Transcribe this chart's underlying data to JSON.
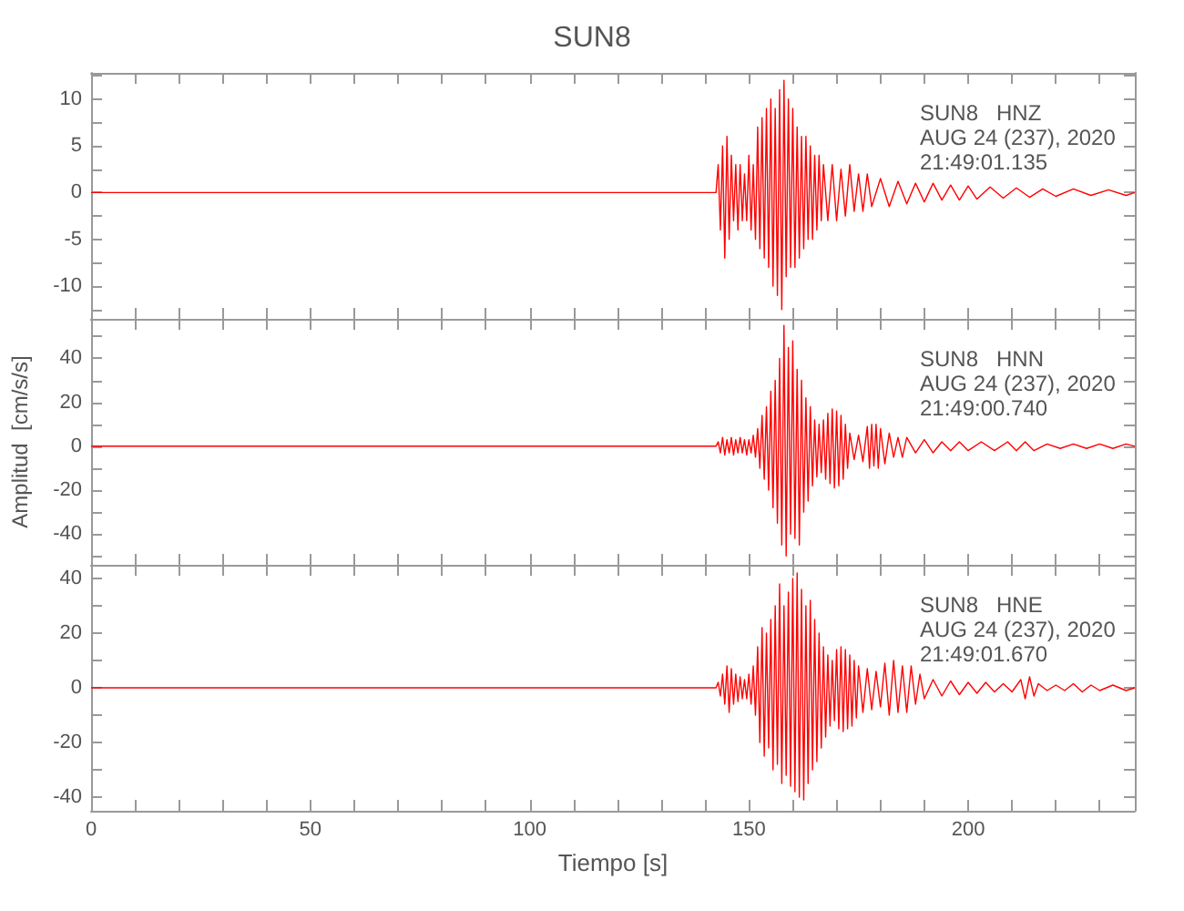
{
  "chart_data": [
    {
      "type": "line",
      "title": "SUN8",
      "annotations": [
        "SUN8   HNZ",
        "AUG 24 (237), 2020",
        "21:49:01.135"
      ],
      "tick_labels": "y",
      "grid": false,
      "line_style": "solid",
      "xlim": [
        0,
        238
      ],
      "xticks": [
        0,
        {
          "value": 10,
          "label": null
        },
        {
          "value": 20,
          "label": null
        },
        {
          "value": 30,
          "label": null
        },
        {
          "value": 40,
          "label": null
        },
        {
          "value": 50,
          "label": null
        },
        {
          "value": 60,
          "label": null
        },
        {
          "value": 70,
          "label": null
        },
        {
          "value": 80,
          "label": null
        },
        {
          "value": 90,
          "label": null
        },
        {
          "value": 100,
          "label": null
        },
        {
          "value": 110,
          "label": null
        },
        {
          "value": 120,
          "label": null
        },
        {
          "value": 130,
          "label": null
        },
        {
          "value": 140,
          "label": null
        },
        {
          "value": 150,
          "label": null
        },
        {
          "value": 160,
          "label": null
        },
        {
          "value": 170,
          "label": null
        },
        {
          "value": 180,
          "label": null
        },
        {
          "value": 190,
          "label": null
        },
        {
          "value": 200,
          "label": null
        },
        {
          "value": 210,
          "label": null
        },
        {
          "value": 220,
          "label": null
        },
        {
          "value": 230,
          "label": null
        }
      ],
      "ylim": [
        -13.5,
        12.8
      ],
      "yticks": [
        {
          "value": -12.5,
          "label": null
        },
        -10,
        {
          "value": -7.5,
          "label": null
        },
        -5,
        {
          "value": -2.5,
          "label": null
        },
        0,
        {
          "value": 2.5,
          "label": null
        },
        5,
        {
          "value": 7.5,
          "label": null
        },
        10,
        {
          "value": 12.5,
          "label": null
        }
      ],
      "series": [
        {
          "color": "#ff0000",
          "x": [
            0,
            142.5,
            143,
            143.5,
            144,
            144.5,
            145,
            145.5,
            146,
            146.5,
            147,
            147.5,
            148,
            148.5,
            149,
            149.5,
            150,
            150.5,
            151,
            151.5,
            152,
            152.5,
            153,
            153.5,
            154,
            154.5,
            155,
            155.5,
            156,
            156.5,
            157,
            157.5,
            158,
            158.5,
            159,
            159.5,
            160,
            160.5,
            161,
            161.5,
            162,
            162.5,
            163,
            163.5,
            164,
            164.5,
            165,
            165.5,
            166,
            166.5,
            167,
            168,
            169,
            170,
            171,
            172,
            173,
            174,
            175,
            176,
            177,
            178,
            180,
            182,
            184,
            186,
            188,
            190,
            192,
            194,
            196,
            198,
            200,
            202,
            205,
            208,
            211,
            214,
            217,
            220,
            224,
            228,
            232,
            236,
            238
          ],
          "values": [
            0,
            0,
            3,
            -4,
            5,
            -7,
            6,
            -5,
            4,
            -3,
            3,
            -4,
            3,
            -3,
            2,
            -3,
            4,
            -4,
            3,
            -5,
            7,
            -6,
            8,
            -7,
            9,
            -8,
            10,
            -10,
            9,
            -11,
            11,
            -12.5,
            12,
            -9,
            10,
            -8,
            9,
            -8,
            7,
            -7,
            6,
            -6,
            6,
            -5,
            5,
            -5,
            4,
            -4,
            4,
            -3,
            3,
            -3,
            3,
            -3,
            2.5,
            -2.5,
            3,
            -2,
            2,
            -2,
            2,
            -1.5,
            1.5,
            -1.5,
            1.2,
            -1.2,
            1,
            -1,
            1,
            -0.8,
            0.8,
            -0.8,
            0.7,
            -0.7,
            0.6,
            -0.6,
            0.5,
            -0.5,
            0.4,
            -0.4,
            0.4,
            -0.3,
            0.3,
            -0.3,
            0
          ]
        }
      ]
    },
    {
      "type": "line",
      "ylabel": "Amplitud  [cm/s/s]",
      "annotations": [
        "SUN8   HNN",
        "AUG 24 (237), 2020",
        "21:49:00.740"
      ],
      "tick_labels": "y",
      "grid": false,
      "line_style": "solid",
      "xlim": [
        0,
        238
      ],
      "xticks": [
        0,
        {
          "value": 10,
          "label": null
        },
        {
          "value": 20,
          "label": null
        },
        {
          "value": 30,
          "label": null
        },
        {
          "value": 40,
          "label": null
        },
        {
          "value": 50,
          "label": null
        },
        {
          "value": 60,
          "label": null
        },
        {
          "value": 70,
          "label": null
        },
        {
          "value": 80,
          "label": null
        },
        {
          "value": 90,
          "label": null
        },
        {
          "value": 100,
          "label": null
        },
        {
          "value": 110,
          "label": null
        },
        {
          "value": 120,
          "label": null
        },
        {
          "value": 130,
          "label": null
        },
        {
          "value": 140,
          "label": null
        },
        {
          "value": 150,
          "label": null
        },
        {
          "value": 160,
          "label": null
        },
        {
          "value": 170,
          "label": null
        },
        {
          "value": 180,
          "label": null
        },
        {
          "value": 190,
          "label": null
        },
        {
          "value": 200,
          "label": null
        },
        {
          "value": 210,
          "label": null
        },
        {
          "value": 220,
          "label": null
        },
        {
          "value": 230,
          "label": null
        }
      ],
      "ylim": [
        -54,
        58
      ],
      "yticks": [
        {
          "value": -50,
          "label": null
        },
        -40,
        {
          "value": -30,
          "label": null
        },
        -20,
        {
          "value": -10,
          "label": null
        },
        0,
        {
          "value": 10,
          "label": null
        },
        20,
        {
          "value": 30,
          "label": null
        },
        40,
        {
          "value": 50,
          "label": null
        }
      ],
      "series": [
        {
          "color": "#ff0000",
          "x": [
            0,
            142.5,
            143,
            143.5,
            144,
            144.5,
            145,
            145.5,
            146,
            146.5,
            147,
            147.5,
            148,
            148.5,
            149,
            149.5,
            150,
            150.5,
            151,
            151.5,
            152,
            152.5,
            153,
            153.5,
            154,
            154.5,
            155,
            155.5,
            156,
            156.5,
            157,
            157.5,
            158,
            158.5,
            159,
            159.5,
            160,
            160.5,
            161,
            161.5,
            162,
            162.5,
            163,
            163.5,
            164,
            164.5,
            165,
            165.5,
            166,
            166.5,
            167,
            167.5,
            168,
            168.5,
            169,
            169.5,
            170,
            170.5,
            171,
            171.5,
            172,
            172.5,
            173,
            174,
            175,
            176,
            177,
            177.5,
            178,
            178.5,
            179,
            179.5,
            180,
            181,
            182,
            183,
            184,
            185,
            186,
            188,
            190,
            192,
            194,
            196,
            198,
            200,
            203,
            206,
            209,
            211,
            213,
            215,
            218,
            221,
            224,
            227,
            230,
            233,
            236,
            238
          ],
          "values": [
            0,
            0,
            2,
            -3,
            4,
            -4,
            3,
            -3,
            4,
            -4,
            3,
            -3,
            4,
            -3,
            3,
            -4,
            3,
            -3,
            5,
            -5,
            8,
            -10,
            14,
            -15,
            18,
            -20,
            25,
            -28,
            30,
            -35,
            40,
            -45,
            55,
            -50,
            45,
            -40,
            48,
            -42,
            35,
            -45,
            30,
            -30,
            22,
            -25,
            18,
            -18,
            12,
            -14,
            10,
            -12,
            12,
            -15,
            15,
            -17,
            17,
            -19,
            16,
            -18,
            14,
            -15,
            10,
            -10,
            6,
            -6,
            5,
            -7,
            9,
            -10,
            10,
            -9,
            10,
            -10,
            8,
            -8,
            6,
            -5,
            4,
            -5,
            4,
            -3,
            3,
            -3,
            2,
            -2,
            2,
            -2,
            2,
            -2,
            2,
            -2,
            2,
            -2,
            1,
            -1,
            1,
            -1,
            1,
            -1,
            1,
            0
          ]
        }
      ]
    },
    {
      "type": "line",
      "xlabel": "Tiempo [s]",
      "annotations": [
        "SUN8   HNE",
        "AUG 24 (237), 2020",
        "21:49:01.670"
      ],
      "grid": false,
      "line_style": "solid",
      "xlim": [
        0,
        238
      ],
      "xticks": [
        0,
        {
          "value": 10,
          "label": null
        },
        {
          "value": 20,
          "label": null
        },
        {
          "value": 30,
          "label": null
        },
        {
          "value": 40,
          "label": null
        },
        50,
        {
          "value": 60,
          "label": null
        },
        {
          "value": 70,
          "label": null
        },
        {
          "value": 80,
          "label": null
        },
        {
          "value": 90,
          "label": null
        },
        100,
        {
          "value": 110,
          "label": null
        },
        {
          "value": 120,
          "label": null
        },
        {
          "value": 130,
          "label": null
        },
        {
          "value": 140,
          "label": null
        },
        150,
        {
          "value": 160,
          "label": null
        },
        {
          "value": 170,
          "label": null
        },
        {
          "value": 180,
          "label": null
        },
        {
          "value": 190,
          "label": null
        },
        200,
        {
          "value": 210,
          "label": null
        },
        {
          "value": 220,
          "label": null
        },
        {
          "value": 230,
          "label": null
        }
      ],
      "ylim": [
        -45,
        45
      ],
      "yticks": [
        -40,
        {
          "value": -30,
          "label": null
        },
        -20,
        {
          "value": -10,
          "label": null
        },
        0,
        {
          "value": 10,
          "label": null
        },
        20,
        {
          "value": 30,
          "label": null
        },
        40
      ],
      "series": [
        {
          "color": "#ff0000",
          "x": [
            0,
            142.5,
            143,
            143.5,
            144,
            144.5,
            145,
            145.5,
            146,
            146.5,
            147,
            147.5,
            148,
            148.5,
            149,
            149.5,
            150,
            150.5,
            151,
            151.5,
            152,
            152.5,
            153,
            153.5,
            154,
            154.5,
            155,
            155.5,
            156,
            156.5,
            157,
            157.5,
            158,
            158.5,
            159,
            159.5,
            160,
            160.5,
            161,
            161.5,
            162,
            162.5,
            163,
            163.5,
            164,
            164.5,
            165,
            165.5,
            166,
            166.5,
            167,
            167.5,
            168,
            168.5,
            169,
            169.5,
            170,
            170.5,
            171,
            171.5,
            172,
            172.5,
            173,
            173.5,
            174,
            174.5,
            175,
            176,
            177,
            178,
            179,
            180,
            181,
            182,
            183,
            184,
            185,
            186,
            187,
            188,
            189,
            190,
            192,
            194,
            196,
            198,
            200,
            202,
            204,
            206,
            208,
            210,
            212,
            213,
            214,
            215,
            216,
            218,
            220,
            222,
            224,
            226,
            228,
            230,
            233,
            236,
            238
          ],
          "values": [
            0,
            0,
            2,
            -3,
            5,
            -6,
            8,
            -9,
            7,
            -6,
            5,
            -5,
            4,
            -4,
            3,
            -4,
            5,
            -6,
            8,
            -10,
            15,
            -20,
            22,
            -25,
            20,
            -22,
            25,
            -30,
            30,
            -28,
            38,
            -35,
            30,
            -32,
            35,
            -36,
            40,
            -38,
            42,
            -40,
            36,
            -41,
            30,
            -35,
            32,
            -30,
            25,
            -27,
            20,
            -22,
            15,
            -18,
            12,
            -14,
            10,
            -12,
            14,
            -15,
            15,
            -16,
            14,
            -15,
            12,
            -14,
            10,
            -11,
            8,
            -9,
            7,
            -8,
            6,
            -7,
            9,
            -10,
            10,
            -9,
            8,
            -9,
            8,
            -6,
            5,
            -4,
            3,
            -3,
            2.5,
            -2.5,
            2,
            -2,
            2,
            -1.5,
            1.5,
            -1.5,
            3,
            -4,
            4,
            -3,
            1.5,
            -1,
            1,
            -1,
            1.5,
            -1.5,
            1,
            -1,
            1,
            -1,
            0
          ]
        }
      ]
    }
  ]
}
